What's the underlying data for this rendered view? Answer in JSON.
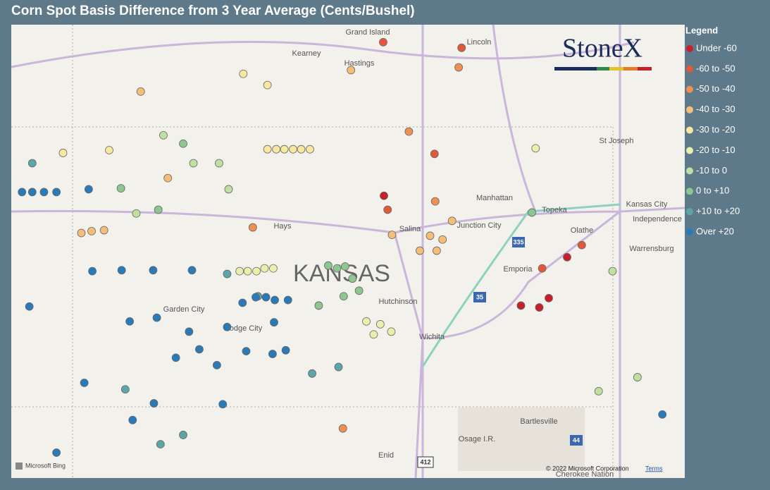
{
  "title": "Corn Spot Basis Difference from 3 Year Average (Cents/Bushel)",
  "logo": "StoneX",
  "legend": {
    "title": "Legend",
    "items": [
      {
        "label": "Under -60",
        "color": "#c8202a"
      },
      {
        "label": "-60 to -50",
        "color": "#e2583a"
      },
      {
        "label": "-50 to -40",
        "color": "#ee9050"
      },
      {
        "label": "-40 to -30",
        "color": "#f5bd78"
      },
      {
        "label": "-30 to -20",
        "color": "#f8e7a0"
      },
      {
        "label": "-20 to -10",
        "color": "#e8f0ae"
      },
      {
        "label": "-10 to 0",
        "color": "#bfe0a0"
      },
      {
        "label": "0 to +10",
        "color": "#8cc790"
      },
      {
        "label": "+10 to +20",
        "color": "#5aa6a8"
      },
      {
        "label": "Over +20",
        "color": "#2a7ab8"
      }
    ]
  },
  "places": [
    "Grand Island",
    "Kearney",
    "Hastings",
    "Lincoln",
    "St Joseph",
    "Manhattan",
    "Topeka",
    "Kansas City",
    "Independence",
    "Olathe",
    "Junction City",
    "Salina",
    "Hays",
    "KANSAS",
    "Hutchinson",
    "Emporia",
    "Warrensburg",
    "Garden City",
    "Dodge City",
    "Wichita",
    "Bartlesville",
    "Osage I.R.",
    "Enid",
    "Cherokee Nation"
  ],
  "highways": [
    "335",
    "35",
    "44",
    "412"
  ],
  "attribution": {
    "provider": "Microsoft Bing",
    "copyright": "© 2022 Microsoft Corporation",
    "terms": "Terms"
  },
  "points": [
    {
      "lon": -97.8,
      "lat": 39.26,
      "bin": 0
    },
    {
      "lon": -95.3,
      "lat": 38.6,
      "bin": 0
    },
    {
      "lon": -95.93,
      "lat": 38.08,
      "bin": 0
    },
    {
      "lon": -95.68,
      "lat": 38.06,
      "bin": 0
    },
    {
      "lon": -95.55,
      "lat": 38.16,
      "bin": 0
    },
    {
      "lon": -97.75,
      "lat": 39.11,
      "bin": 1
    },
    {
      "lon": -97.11,
      "lat": 39.71,
      "bin": 1
    },
    {
      "lon": -95.1,
      "lat": 38.73,
      "bin": 1
    },
    {
      "lon": -95.64,
      "lat": 38.48,
      "bin": 1
    },
    {
      "lon": -96.74,
      "lat": 40.85,
      "bin": 1
    },
    {
      "lon": -97.81,
      "lat": 40.91,
      "bin": 1
    },
    {
      "lon": -99.59,
      "lat": 38.92,
      "bin": 2
    },
    {
      "lon": -97.46,
      "lat": 39.95,
      "bin": 2
    },
    {
      "lon": -97.1,
      "lat": 39.2,
      "bin": 2
    },
    {
      "lon": -98.36,
      "lat": 36.76,
      "bin": 2
    },
    {
      "lon": -96.78,
      "lat": 40.64,
      "bin": 2
    },
    {
      "lon": -100.75,
      "lat": 39.45,
      "bin": 3
    },
    {
      "lon": -101.79,
      "lat": 38.88,
      "bin": 3
    },
    {
      "lon": -101.93,
      "lat": 38.86,
      "bin": 3
    },
    {
      "lon": -101.62,
      "lat": 38.89,
      "bin": 3
    },
    {
      "lon": -97.17,
      "lat": 38.83,
      "bin": 3
    },
    {
      "lon": -97.08,
      "lat": 38.67,
      "bin": 3
    },
    {
      "lon": -97.69,
      "lat": 38.84,
      "bin": 3
    },
    {
      "lon": -96.87,
      "lat": 38.99,
      "bin": 3
    },
    {
      "lon": -97.0,
      "lat": 38.79,
      "bin": 3
    },
    {
      "lon": -97.31,
      "lat": 38.67,
      "bin": 3
    },
    {
      "lon": -98.25,
      "lat": 40.61,
      "bin": 3
    },
    {
      "lon": -101.12,
      "lat": 40.38,
      "bin": 3
    },
    {
      "lon": -99.39,
      "lat": 39.76,
      "bin": 4
    },
    {
      "lon": -99.27,
      "lat": 39.76,
      "bin": 4
    },
    {
      "lon": -99.16,
      "lat": 39.76,
      "bin": 4
    },
    {
      "lon": -99.04,
      "lat": 39.76,
      "bin": 4
    },
    {
      "lon": -98.93,
      "lat": 39.76,
      "bin": 4
    },
    {
      "lon": -98.81,
      "lat": 39.76,
      "bin": 4
    },
    {
      "lon": -101.55,
      "lat": 39.75,
      "bin": 4
    },
    {
      "lon": -102.18,
      "lat": 39.72,
      "bin": 4
    },
    {
      "lon": -99.72,
      "lat": 40.57,
      "bin": 4
    },
    {
      "lon": -99.39,
      "lat": 40.45,
      "bin": 4
    },
    {
      "lon": -99.77,
      "lat": 38.45,
      "bin": 5
    },
    {
      "lon": -99.66,
      "lat": 38.45,
      "bin": 5
    },
    {
      "lon": -99.54,
      "lat": 38.45,
      "bin": 5
    },
    {
      "lon": -99.43,
      "lat": 38.48,
      "bin": 5
    },
    {
      "lon": -99.31,
      "lat": 38.48,
      "bin": 5
    },
    {
      "lon": -98.04,
      "lat": 37.91,
      "bin": 5
    },
    {
      "lon": -97.85,
      "lat": 37.88,
      "bin": 5
    },
    {
      "lon": -97.7,
      "lat": 37.8,
      "bin": 5
    },
    {
      "lon": -97.94,
      "lat": 37.77,
      "bin": 5
    },
    {
      "lon": -95.73,
      "lat": 39.77,
      "bin": 5
    },
    {
      "lon": -100.81,
      "lat": 39.91,
      "bin": 6
    },
    {
      "lon": -100.4,
      "lat": 39.61,
      "bin": 6
    },
    {
      "lon": -100.05,
      "lat": 39.61,
      "bin": 6
    },
    {
      "lon": -101.18,
      "lat": 39.07,
      "bin": 6
    },
    {
      "lon": -99.92,
      "lat": 39.33,
      "bin": 6
    },
    {
      "lon": -94.68,
      "lat": 38.45,
      "bin": 6
    },
    {
      "lon": -94.34,
      "lat": 37.31,
      "bin": 6
    },
    {
      "lon": -94.87,
      "lat": 37.16,
      "bin": 6
    },
    {
      "lon": -100.54,
      "lat": 39.82,
      "bin": 7
    },
    {
      "lon": -100.88,
      "lat": 39.11,
      "bin": 7
    },
    {
      "lon": -101.39,
      "lat": 39.34,
      "bin": 7
    },
    {
      "lon": -98.56,
      "lat": 38.51,
      "bin": 7
    },
    {
      "lon": -98.44,
      "lat": 38.48,
      "bin": 7
    },
    {
      "lon": -98.33,
      "lat": 38.5,
      "bin": 7
    },
    {
      "lon": -98.23,
      "lat": 38.37,
      "bin": 7
    },
    {
      "lon": -98.14,
      "lat": 38.24,
      "bin": 7
    },
    {
      "lon": -98.35,
      "lat": 38.18,
      "bin": 7
    },
    {
      "lon": -98.69,
      "lat": 38.08,
      "bin": 7
    },
    {
      "lon": -95.78,
      "lat": 39.08,
      "bin": 7
    },
    {
      "lon": -102.6,
      "lat": 39.61,
      "bin": 8
    },
    {
      "lon": -101.33,
      "lat": 37.18,
      "bin": 8
    },
    {
      "lon": -100.54,
      "lat": 36.69,
      "bin": 8
    },
    {
      "lon": -100.85,
      "lat": 36.59,
      "bin": 8
    },
    {
      "lon": -99.94,
      "lat": 38.42,
      "bin": 8
    },
    {
      "lon": -99.52,
      "lat": 38.18,
      "bin": 8
    },
    {
      "lon": -98.78,
      "lat": 37.35,
      "bin": 8
    },
    {
      "lon": -98.42,
      "lat": 37.42,
      "bin": 8
    },
    {
      "lon": -102.74,
      "lat": 39.3,
      "bin": 9
    },
    {
      "lon": -102.6,
      "lat": 39.3,
      "bin": 9
    },
    {
      "lon": -102.44,
      "lat": 39.3,
      "bin": 9
    },
    {
      "lon": -102.27,
      "lat": 39.3,
      "bin": 9
    },
    {
      "lon": -101.83,
      "lat": 39.33,
      "bin": 9
    },
    {
      "lon": -101.78,
      "lat": 38.45,
      "bin": 9
    },
    {
      "lon": -101.38,
      "lat": 38.46,
      "bin": 9
    },
    {
      "lon": -100.95,
      "lat": 38.46,
      "bin": 9
    },
    {
      "lon": -100.42,
      "lat": 38.46,
      "bin": 9
    },
    {
      "lon": -102.64,
      "lat": 38.07,
      "bin": 9
    },
    {
      "lon": -101.27,
      "lat": 37.91,
      "bin": 9
    },
    {
      "lon": -100.9,
      "lat": 37.95,
      "bin": 9
    },
    {
      "lon": -99.73,
      "lat": 38.11,
      "bin": 9
    },
    {
      "lon": -99.55,
      "lat": 38.17,
      "bin": 9
    },
    {
      "lon": -99.41,
      "lat": 38.17,
      "bin": 9
    },
    {
      "lon": -99.29,
      "lat": 38.14,
      "bin": 9
    },
    {
      "lon": -99.11,
      "lat": 38.14,
      "bin": 9
    },
    {
      "lon": -100.46,
      "lat": 37.8,
      "bin": 9
    },
    {
      "lon": -100.32,
      "lat": 37.61,
      "bin": 9
    },
    {
      "lon": -100.64,
      "lat": 37.52,
      "bin": 9
    },
    {
      "lon": -100.08,
      "lat": 37.44,
      "bin": 9
    },
    {
      "lon": -99.68,
      "lat": 37.59,
      "bin": 9
    },
    {
      "lon": -99.32,
      "lat": 37.56,
      "bin": 9
    },
    {
      "lon": -99.14,
      "lat": 37.6,
      "bin": 9
    },
    {
      "lon": -101.89,
      "lat": 37.25,
      "bin": 9
    },
    {
      "lon": -101.23,
      "lat": 36.85,
      "bin": 9
    },
    {
      "lon": -100.94,
      "lat": 37.03,
      "bin": 9
    },
    {
      "lon": -100.0,
      "lat": 37.02,
      "bin": 9
    },
    {
      "lon": -102.27,
      "lat": 36.5,
      "bin": 9
    },
    {
      "lon": -94.0,
      "lat": 36.91,
      "bin": 9
    },
    {
      "lon": -99.94,
      "lat": 37.85,
      "bin": 9
    },
    {
      "lon": -99.3,
      "lat": 37.9,
      "bin": 9
    }
  ]
}
